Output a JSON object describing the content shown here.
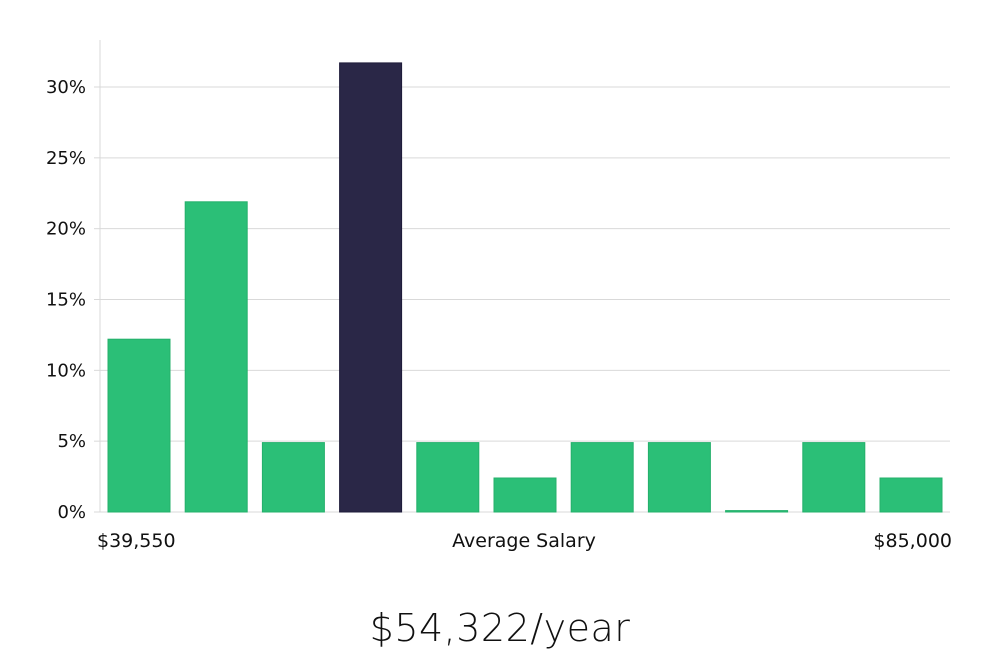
{
  "chart_data": {
    "type": "bar",
    "title": "",
    "xlabel": "Average Salary",
    "ylabel": "",
    "x_range_labels": {
      "min": "$39,550",
      "max": "$85,000"
    },
    "ylim": [
      0,
      33
    ],
    "yticks": [
      0,
      5,
      10,
      15,
      20,
      25,
      30
    ],
    "ytick_labels": [
      "0%",
      "5%",
      "10%",
      "15%",
      "20%",
      "25%",
      "30%"
    ],
    "grid": true,
    "values": [
      12.2,
      21.9,
      4.9,
      31.7,
      4.9,
      2.4,
      4.9,
      4.9,
      0.1,
      4.9,
      2.4
    ],
    "highlight_index": 3,
    "colors": {
      "bar": "#2bbf77",
      "bar_border": "#24b06b",
      "highlight": "#2a2747",
      "highlight_border": "#1e1b3a",
      "grid": "#d9d9d9"
    }
  },
  "salary": {
    "caption": "$54,322/year"
  }
}
